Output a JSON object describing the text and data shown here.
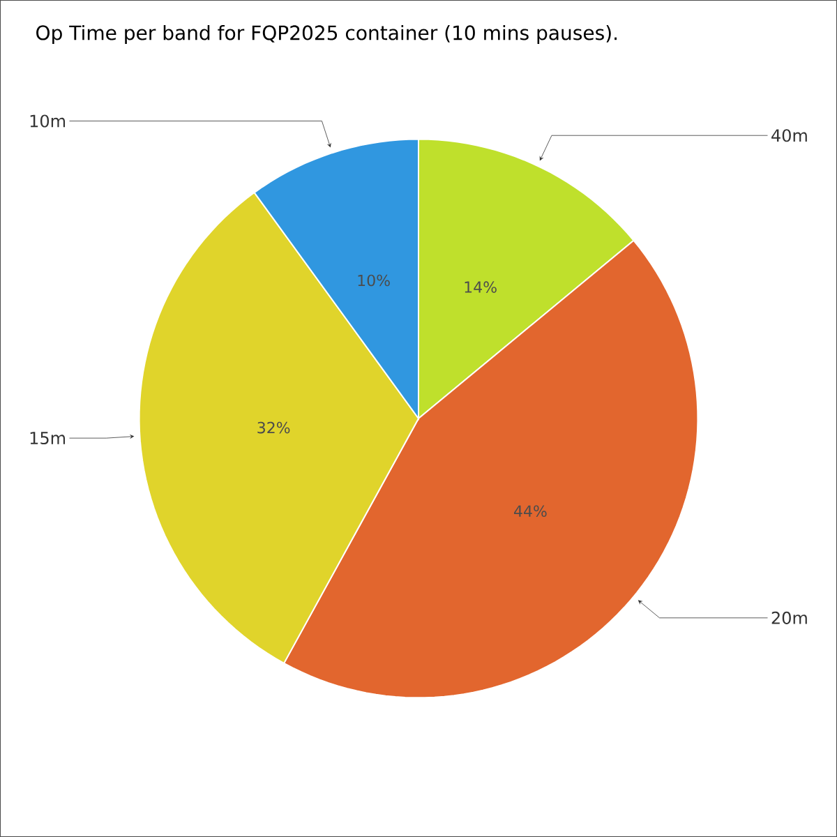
{
  "chart_data": {
    "type": "pie",
    "title": "Op Time per band for FQP2025 container (10 mins pauses).",
    "categories": [
      "40m",
      "20m",
      "15m",
      "10m"
    ],
    "values": [
      14,
      44,
      32,
      10
    ],
    "value_labels": [
      "14%",
      "44%",
      "32%",
      "10%"
    ],
    "colors": [
      "#bfe02c",
      "#e2662e",
      "#e0d42b",
      "#3097e0"
    ]
  }
}
